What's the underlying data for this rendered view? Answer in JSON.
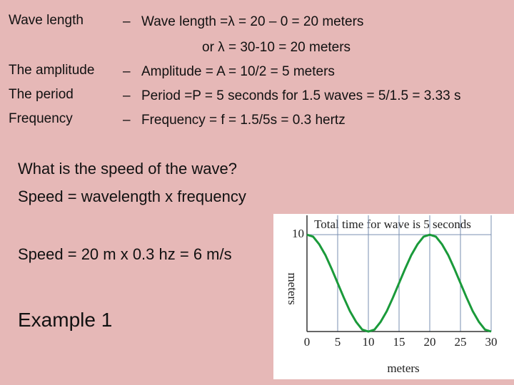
{
  "labels": [
    "Wave length",
    "The amplitude",
    "The period",
    "Frequency"
  ],
  "bullets": [
    "Wave length =λ = 20 – 0 = 20 meters",
    "or λ = 30-10 = 20 meters",
    "Amplitude = A = 10/2 = 5 meters",
    " Period =P = 5 seconds for 1.5 waves =  5/1.5 = 3.33 s",
    "Frequency = f = 1.5/5s = 0.3 hertz"
  ],
  "question": [
    "What is the speed of the wave?",
    "Speed = wavelength x frequency"
  ],
  "answer": "Speed = 20 m x 0.3 hz = 6 m/s",
  "example": "Example 1",
  "chart_data": {
    "type": "line",
    "title": "Total time for wave is 5 seconds",
    "x_label": "meters",
    "y_label": "meters",
    "x": [
      0,
      1,
      2,
      3,
      4,
      5,
      6,
      7,
      8,
      9,
      10,
      11,
      12,
      13,
      14,
      15,
      16,
      17,
      18,
      19,
      20,
      21,
      22,
      23,
      24,
      25,
      26,
      27,
      28,
      29,
      30
    ],
    "series": [
      {
        "color": "#1a9a3a",
        "values": [
          10,
          9.8,
          9,
          7.9,
          6.5,
          5,
          3.5,
          2.1,
          1,
          0.2,
          0,
          0.2,
          1,
          2.1,
          3.5,
          5,
          6.5,
          7.9,
          9,
          9.8,
          10,
          9.8,
          9,
          7.9,
          6.5,
          5,
          3.5,
          2.1,
          1,
          0.2,
          0
        ]
      }
    ],
    "xlim": [
      0,
      30
    ],
    "ylim": [
      0,
      12
    ],
    "xticks": [
      0,
      5,
      10,
      15,
      20,
      25,
      30
    ],
    "yticks": [
      10
    ],
    "grid": true
  }
}
